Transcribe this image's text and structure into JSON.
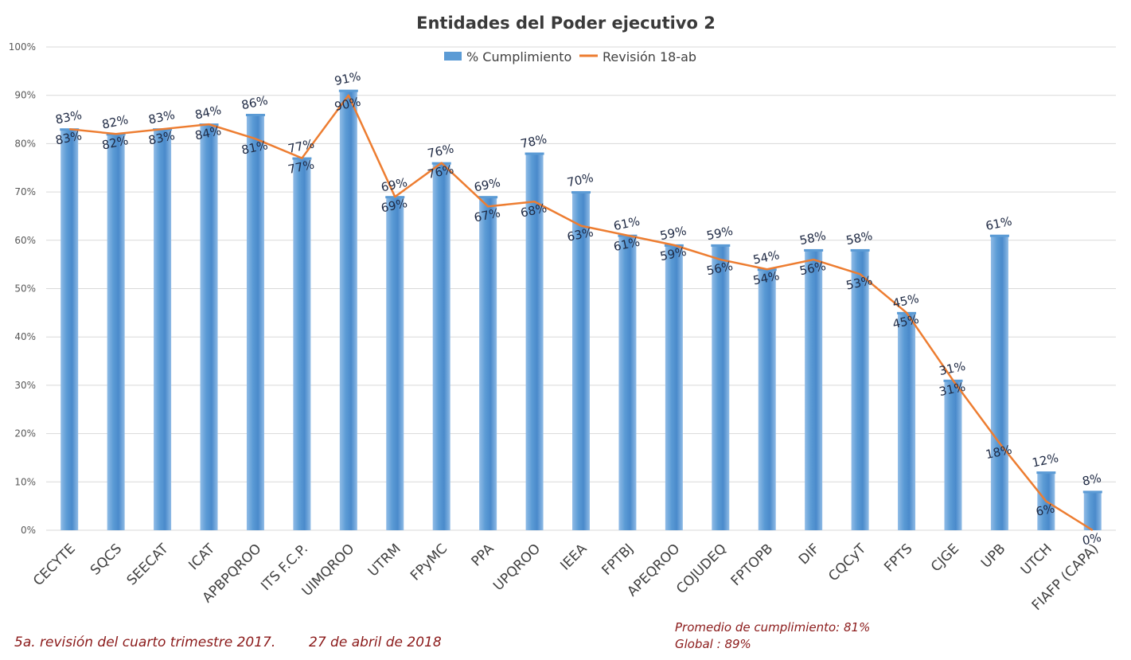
{
  "chart_data": {
    "type": "bar",
    "title": "Entidades del Poder ejecutivo 2",
    "categories": [
      "CECYTE",
      "SQCS",
      "SEECAT",
      "ICAT",
      "APBPQROO",
      "ITS F.C.P.",
      "UIMQROO",
      "UTRM",
      "FPyMC",
      "PPA",
      "UPQROO",
      "IEEA",
      "FPTBJ",
      "APEQROO",
      "COJUDEQ",
      "FPTOPB",
      "DIF",
      "CQCyT",
      "FPTS",
      "CJGE",
      "UPB",
      "UTCH",
      "FIAFP (CAPA)"
    ],
    "series": [
      {
        "name": "% Cumplimiento",
        "kind": "bar",
        "color": "#5b9bd5",
        "values": [
          83,
          82,
          83,
          84,
          86,
          77,
          91,
          69,
          76,
          69,
          78,
          70,
          61,
          59,
          59,
          54,
          58,
          58,
          45,
          31,
          61,
          12,
          8
        ],
        "labels": [
          "83%",
          "82%",
          "83%",
          "84%",
          "86%",
          "77%",
          "91%",
          "69%",
          "76%",
          "69%",
          "78%",
          "70%",
          "61%",
          "59%",
          "59%",
          "54%",
          "58%",
          "58%",
          "45%",
          "31%",
          "61%",
          "12%",
          "8%"
        ]
      },
      {
        "name": "Revisión  18-ab",
        "kind": "line",
        "color": "#ed7d31",
        "values": [
          83,
          82,
          83,
          84,
          81,
          77,
          90,
          69,
          76,
          67,
          68,
          63,
          61,
          59,
          56,
          54,
          56,
          53,
          45,
          31,
          18,
          6,
          0
        ],
        "labels": [
          "83%",
          "82%",
          "83%",
          "84%",
          "81%",
          "77%",
          "90%",
          "69%",
          "76%",
          "67%",
          "68%",
          "63%",
          "61%",
          "59%",
          "56%",
          "54%",
          "56%",
          "53%",
          "45%",
          "31%",
          "18%",
          "6%",
          "0%"
        ]
      }
    ],
    "yticks": [
      "0%",
      "10%",
      "20%",
      "30%",
      "40%",
      "50%",
      "60%",
      "70%",
      "80%",
      "90%",
      "100%"
    ],
    "ylim": [
      0,
      100
    ],
    "grid": true,
    "legend_position": "top"
  },
  "footer": {
    "revision": "5a. revisión del cuarto trimestre 2017.",
    "date": "27 de abril de 2018",
    "average": "Promedio de cumplimiento: 81%",
    "global": "Global : 89%"
  }
}
